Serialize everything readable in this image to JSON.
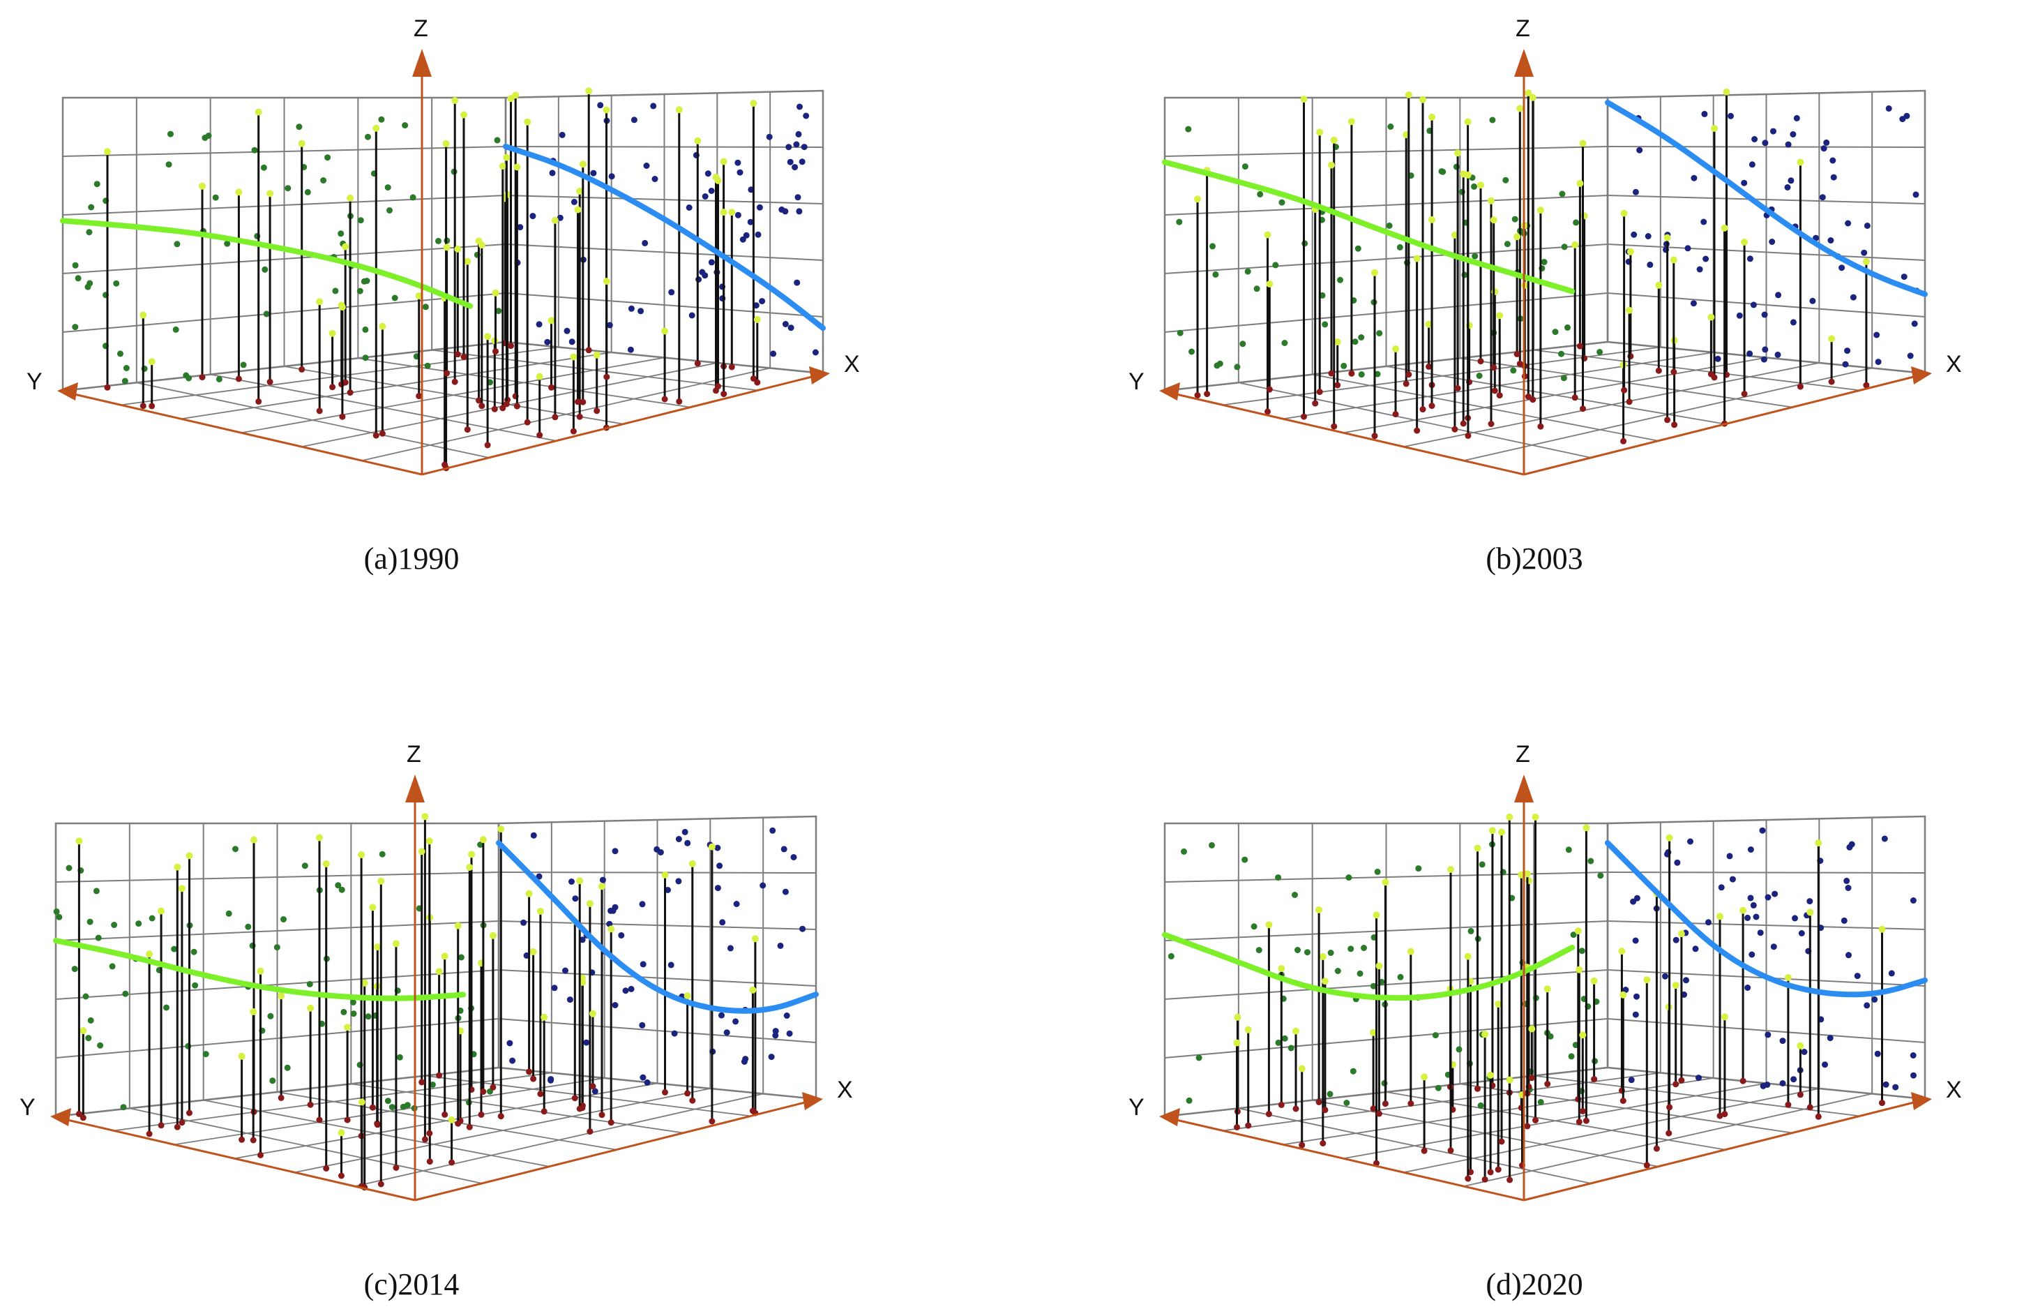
{
  "axis_color": "#c0521b",
  "grid_color": "#7d7d7d",
  "stem_color": "#111111",
  "stem_top_color": "#d8f040",
  "stem_base_color": "#8a1a1a",
  "left_points_color": "#2a7a2a",
  "right_points_color": "#1a237e",
  "left_trend_color": "#7df02a",
  "right_trend_color": "#2b8cf2",
  "chart_data": [
    {
      "type": "scatter",
      "caption": "(a)1990",
      "axes": {
        "x": "X",
        "y": "Y",
        "z": "Z"
      },
      "trend_left": [
        [
          0.0,
          0.58
        ],
        [
          0.15,
          0.55
        ],
        [
          0.3,
          0.51
        ],
        [
          0.45,
          0.45
        ],
        [
          0.6,
          0.38
        ],
        [
          0.75,
          0.28
        ],
        [
          0.88,
          0.16
        ]
      ],
      "trend_right": [
        [
          0.0,
          0.8
        ],
        [
          0.15,
          0.73
        ],
        [
          0.3,
          0.63
        ],
        [
          0.45,
          0.52
        ],
        [
          0.6,
          0.4
        ],
        [
          0.75,
          0.28
        ],
        [
          0.88,
          0.16
        ]
      ]
    },
    {
      "type": "scatter",
      "caption": "(b)2003",
      "axes": {
        "x": "X",
        "y": "Y",
        "z": "Z"
      },
      "trend_left": [
        [
          0.0,
          0.78
        ],
        [
          0.15,
          0.71
        ],
        [
          0.3,
          0.63
        ],
        [
          0.45,
          0.52
        ],
        [
          0.6,
          0.41
        ],
        [
          0.75,
          0.31
        ],
        [
          0.88,
          0.22
        ]
      ],
      "trend_right": [
        [
          0.0,
          0.98
        ],
        [
          0.15,
          0.85
        ],
        [
          0.3,
          0.7
        ],
        [
          0.45,
          0.55
        ],
        [
          0.6,
          0.42
        ],
        [
          0.75,
          0.33
        ],
        [
          0.88,
          0.28
        ]
      ]
    },
    {
      "type": "scatter",
      "caption": "(c)2014",
      "axes": {
        "x": "X",
        "y": "Y",
        "z": "Z"
      },
      "trend_left": [
        [
          0.0,
          0.6
        ],
        [
          0.15,
          0.54
        ],
        [
          0.3,
          0.46
        ],
        [
          0.45,
          0.39
        ],
        [
          0.6,
          0.34
        ],
        [
          0.75,
          0.31
        ],
        [
          0.88,
          0.31
        ]
      ],
      "trend_right": [
        [
          0.0,
          0.92
        ],
        [
          0.15,
          0.7
        ],
        [
          0.3,
          0.48
        ],
        [
          0.45,
          0.34
        ],
        [
          0.6,
          0.29
        ],
        [
          0.75,
          0.3
        ],
        [
          0.88,
          0.37
        ]
      ]
    },
    {
      "type": "scatter",
      "caption": "(d)2020",
      "axes": {
        "x": "X",
        "y": "Y",
        "z": "Z"
      },
      "trend_left": [
        [
          0.0,
          0.62
        ],
        [
          0.15,
          0.52
        ],
        [
          0.3,
          0.41
        ],
        [
          0.45,
          0.35
        ],
        [
          0.6,
          0.34
        ],
        [
          0.75,
          0.39
        ],
        [
          0.88,
          0.5
        ]
      ],
      "trend_right": [
        [
          0.0,
          0.92
        ],
        [
          0.15,
          0.7
        ],
        [
          0.3,
          0.5
        ],
        [
          0.45,
          0.39
        ],
        [
          0.6,
          0.35
        ],
        [
          0.75,
          0.36
        ],
        [
          0.88,
          0.42
        ]
      ]
    }
  ]
}
